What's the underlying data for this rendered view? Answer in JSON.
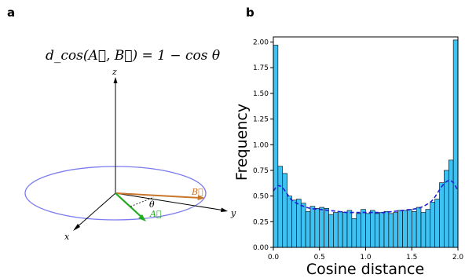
{
  "panels": {
    "a": {
      "letter": "a",
      "formula": "d_cos(A⃗, B⃗) = 1 − cos θ",
      "axis_labels": {
        "z": "z",
        "y": "y",
        "x": "x"
      },
      "vector_labels": {
        "A": "A⃗",
        "B": "B⃗",
        "theta": "θ"
      },
      "colors": {
        "circle": "#7b7bf0",
        "vector_A": "#22aa22",
        "vector_B": "#c8762a",
        "axes": "#000000"
      }
    },
    "b": {
      "letter": "b"
    }
  },
  "chart_data": {
    "type": "bar",
    "subtype": "histogram",
    "xlabel": "Cosine distance",
    "ylabel": "Frequency",
    "xlim": [
      0.0,
      2.0
    ],
    "ylim": [
      0.0,
      2.05
    ],
    "xticks": [
      "0.0",
      "0.5",
      "1.0",
      "1.5",
      "2.0"
    ],
    "yticks": [
      "0.00",
      "0.25",
      "0.50",
      "0.75",
      "1.00",
      "1.25",
      "1.50",
      "1.75",
      "2.00"
    ],
    "bin_width": 0.05,
    "bin_starts": [
      0.0,
      0.05,
      0.1,
      0.15,
      0.2,
      0.25,
      0.3,
      0.35,
      0.4,
      0.45,
      0.5,
      0.55,
      0.6,
      0.65,
      0.7,
      0.75,
      0.8,
      0.85,
      0.9,
      0.95,
      1.0,
      1.05,
      1.1,
      1.15,
      1.2,
      1.25,
      1.3,
      1.35,
      1.4,
      1.45,
      1.5,
      1.55,
      1.6,
      1.65,
      1.7,
      1.75,
      1.8,
      1.85,
      1.9,
      1.95
    ],
    "values": [
      1.97,
      0.79,
      0.72,
      0.5,
      0.46,
      0.47,
      0.43,
      0.35,
      0.4,
      0.38,
      0.39,
      0.38,
      0.32,
      0.34,
      0.35,
      0.34,
      0.36,
      0.28,
      0.33,
      0.37,
      0.33,
      0.36,
      0.33,
      0.34,
      0.35,
      0.33,
      0.34,
      0.36,
      0.36,
      0.37,
      0.35,
      0.39,
      0.34,
      0.37,
      0.44,
      0.47,
      0.63,
      0.75,
      0.85,
      2.02
    ],
    "kde_x": [
      0.0,
      0.05,
      0.1,
      0.15,
      0.2,
      0.3,
      0.4,
      0.5,
      0.6,
      0.7,
      0.8,
      0.9,
      1.0,
      1.1,
      1.2,
      1.3,
      1.4,
      1.5,
      1.6,
      1.7,
      1.75,
      1.8,
      1.85,
      1.9,
      1.95,
      2.0
    ],
    "kde_y": [
      0.55,
      0.6,
      0.58,
      0.52,
      0.46,
      0.41,
      0.38,
      0.37,
      0.36,
      0.35,
      0.34,
      0.34,
      0.34,
      0.34,
      0.34,
      0.35,
      0.36,
      0.37,
      0.39,
      0.44,
      0.49,
      0.56,
      0.62,
      0.65,
      0.63,
      0.55
    ],
    "colors": {
      "bar_fill": "#3ec1f3",
      "bar_edge": "#000000",
      "kde": "#1f1fd6"
    }
  }
}
